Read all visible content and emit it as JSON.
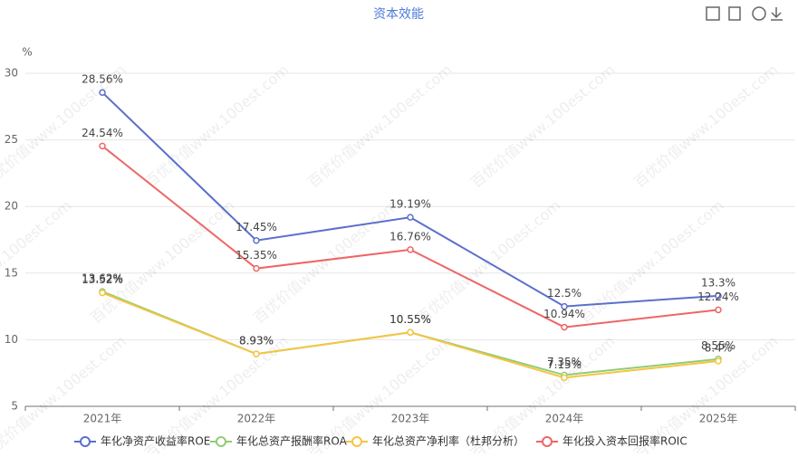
{
  "chart_data": {
    "type": "line",
    "title": "资本效能",
    "y_label": "%",
    "watermark": "百优价值www.100est.com",
    "categories": [
      "2021年",
      "2022年",
      "2023年",
      "2024年",
      "2025年"
    ],
    "ylim": [
      5,
      30
    ],
    "yticks": [
      5,
      10,
      15,
      20,
      25,
      30
    ],
    "grid": true,
    "series": [
      {
        "name": "年化净资产收益率ROE",
        "color": "#5b6fcc",
        "values": [
          28.56,
          17.45,
          19.19,
          12.5,
          13.3
        ],
        "value_labels": [
          "28.56%",
          "17.45%",
          "19.19%",
          "12.5%",
          "13.3%"
        ]
      },
      {
        "name": "年化总资产报酬率ROA",
        "color": "#91cc75",
        "values": [
          13.62,
          8.93,
          10.55,
          7.35,
          8.55
        ],
        "value_labels": [
          "13.62%",
          "8.93%",
          "10.55%",
          "7.35%",
          "8.55%"
        ]
      },
      {
        "name": "年化总资产净利率（杜邦分析）",
        "color": "#f5c542",
        "values": [
          13.52,
          8.93,
          10.55,
          7.15,
          8.4
        ],
        "value_labels": [
          "13.52%",
          "8.93%",
          "10.55%",
          "7.15%",
          "8.4%"
        ]
      },
      {
        "name": "年化投入资本回报率ROIC",
        "color": "#ee6666",
        "values": [
          24.54,
          15.35,
          16.76,
          10.94,
          12.24
        ],
        "value_labels": [
          "24.54%",
          "15.35%",
          "16.76%",
          "10.94%",
          "12.24%"
        ]
      }
    ]
  }
}
